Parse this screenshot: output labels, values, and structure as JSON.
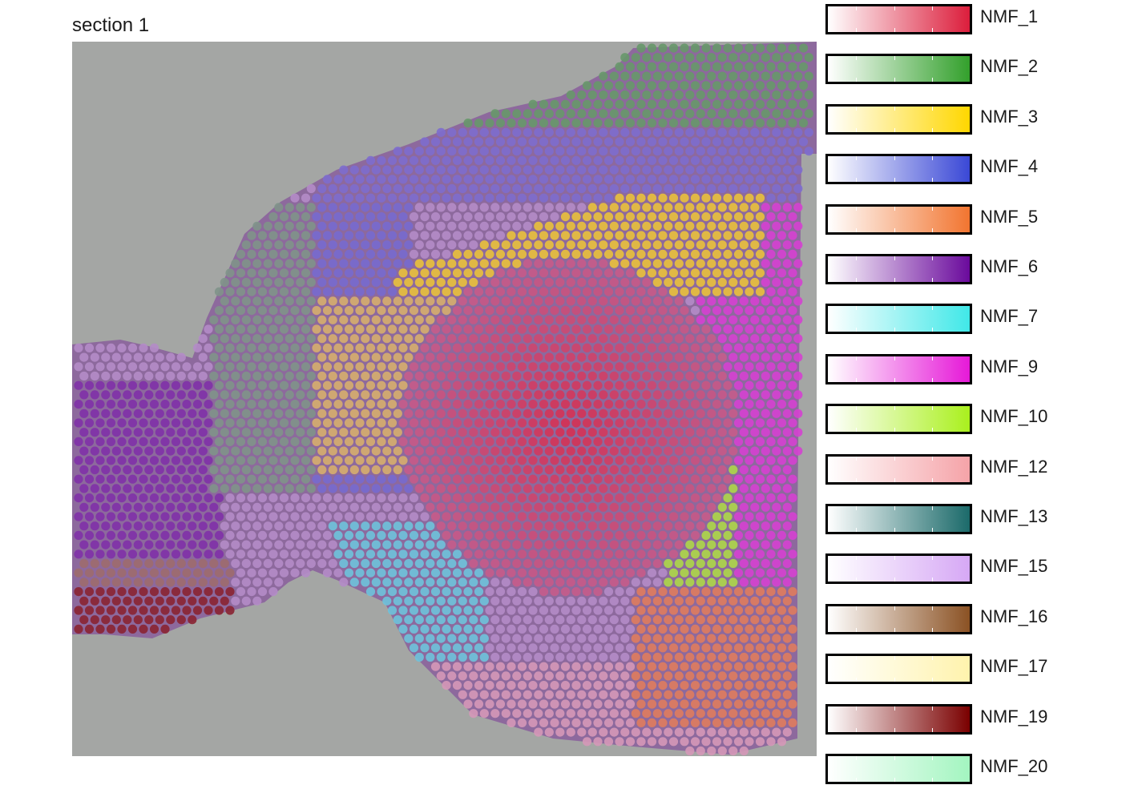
{
  "title": "section 1",
  "legend": [
    {
      "label": "NMF_1",
      "color": "#dc1e3c"
    },
    {
      "label": "NMF_2",
      "color": "#33a02c"
    },
    {
      "label": "NMF_3",
      "color": "#ffd700"
    },
    {
      "label": "NMF_4",
      "color": "#3a48d6"
    },
    {
      "label": "NMF_5",
      "color": "#f27530"
    },
    {
      "label": "NMF_6",
      "color": "#6a0a9c"
    },
    {
      "label": "NMF_7",
      "color": "#40e8e8"
    },
    {
      "label": "NMF_9",
      "color": "#e619d8"
    },
    {
      "label": "NMF_10",
      "color": "#aaf01e"
    },
    {
      "label": "NMF_12",
      "color": "#f5a3a8"
    },
    {
      "label": "NMF_13",
      "color": "#1b6a6a"
    },
    {
      "label": "NMF_15",
      "color": "#d6a8f5"
    },
    {
      "label": "NMF_16",
      "color": "#8b5224"
    },
    {
      "label": "NMF_17",
      "color": "#fff3ad"
    },
    {
      "label": "NMF_19",
      "color": "#7a0000"
    },
    {
      "label": "NMF_20",
      "color": "#a3f5c0"
    }
  ]
}
